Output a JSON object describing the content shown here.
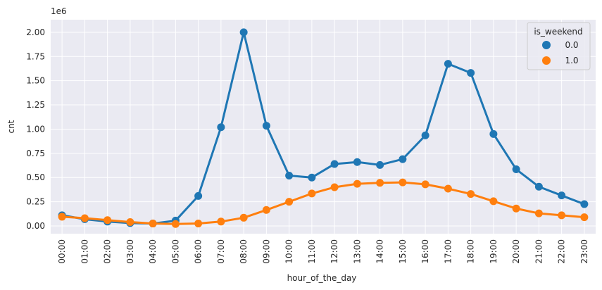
{
  "chart_data": {
    "type": "line",
    "xlabel": "hour_of_the_day",
    "ylabel": "cnt",
    "y_offset_label": "1e6",
    "x": [
      "00:00",
      "01:00",
      "02:00",
      "03:00",
      "04:00",
      "05:00",
      "06:00",
      "07:00",
      "08:00",
      "09:00",
      "10:00",
      "11:00",
      "12:00",
      "13:00",
      "14:00",
      "15:00",
      "16:00",
      "17:00",
      "18:00",
      "19:00",
      "20:00",
      "21:00",
      "22:00",
      "23:00"
    ],
    "ylim": [
      -0.08,
      2.13
    ],
    "y_ticks": [
      0.0,
      0.25,
      0.5,
      0.75,
      1.0,
      1.25,
      1.5,
      1.75,
      2.0
    ],
    "y_tick_labels": [
      "0.00",
      "0.25",
      "0.50",
      "0.75",
      "1.00",
      "1.25",
      "1.50",
      "1.75",
      "2.00"
    ],
    "grid": true,
    "legend": {
      "title": "is_weekend",
      "placement": "top-right"
    },
    "series": [
      {
        "name": "0.0",
        "color": "#1f77b4",
        "values": [
          0.11,
          0.07,
          0.045,
          0.03,
          0.025,
          0.055,
          0.31,
          1.02,
          2.0,
          1.035,
          0.52,
          0.5,
          0.64,
          0.66,
          0.63,
          0.69,
          0.935,
          1.675,
          1.58,
          0.95,
          0.585,
          0.405,
          0.315,
          0.225
        ],
        "error": [
          0,
          0,
          0,
          0,
          0,
          0,
          0,
          0,
          0.035,
          0,
          0,
          0,
          0,
          0,
          0,
          0,
          0,
          0.03,
          0.03,
          0,
          0,
          0,
          0,
          0
        ]
      },
      {
        "name": "1.0",
        "color": "#ff7f0e",
        "values": [
          0.095,
          0.08,
          0.06,
          0.04,
          0.025,
          0.02,
          0.025,
          0.045,
          0.085,
          0.165,
          0.25,
          0.335,
          0.4,
          0.435,
          0.445,
          0.45,
          0.43,
          0.385,
          0.33,
          0.255,
          0.18,
          0.13,
          0.11,
          0.09
        ],
        "error": [
          0,
          0,
          0,
          0,
          0,
          0,
          0,
          0,
          0,
          0,
          0,
          0,
          0,
          0,
          0,
          0,
          0,
          0,
          0,
          0,
          0,
          0,
          0,
          0
        ]
      }
    ]
  }
}
